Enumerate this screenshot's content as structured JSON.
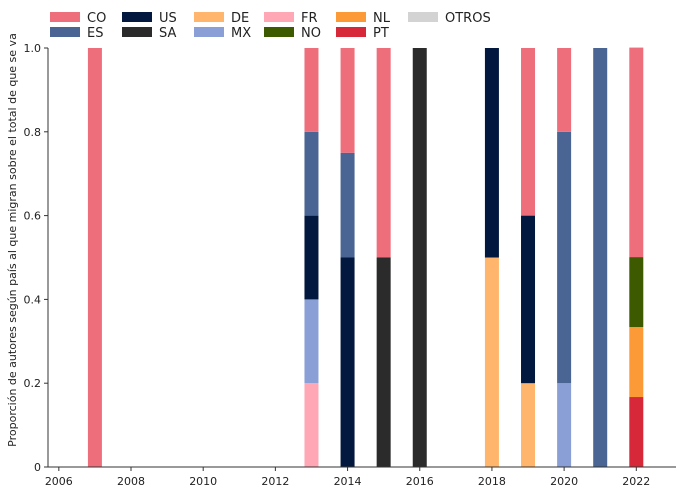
{
  "chart_data": {
    "type": "bar",
    "stacked": true,
    "title": "",
    "xlabel": "",
    "ylabel": "Proporción de autores según país al que migran sobre el total de que se va",
    "xlim": [
      2005.7,
      2023.1
    ],
    "ylim": [
      0,
      1.0
    ],
    "xticks": [
      "2006",
      "2008",
      "2010",
      "2012",
      "2014",
      "2016",
      "2018",
      "2020",
      "2022"
    ],
    "yticks": [
      "0",
      "0.2",
      "0.4",
      "0.6",
      "0.8",
      "1.0"
    ],
    "legend_placement": "top-left",
    "grid": false,
    "categories": [
      2006,
      2007,
      2008,
      2009,
      2010,
      2011,
      2012,
      2013,
      2014,
      2015,
      2016,
      2017,
      2018,
      2019,
      2020,
      2021,
      2022
    ],
    "series": [
      {
        "name": "PT",
        "color": "#d62839",
        "values": [
          0,
          0,
          0,
          0,
          0,
          0,
          0,
          0,
          0,
          0,
          0,
          0,
          0,
          0,
          0,
          0,
          0.167
        ]
      },
      {
        "name": "NL",
        "color": "#fb9a36",
        "values": [
          0,
          0,
          0,
          0,
          0,
          0,
          0,
          0,
          0,
          0,
          0,
          0,
          0,
          0,
          0,
          0,
          0.167
        ]
      },
      {
        "name": "NO",
        "color": "#3d5a00",
        "values": [
          0,
          0,
          0,
          0,
          0,
          0,
          0,
          0,
          0,
          0,
          0,
          0,
          0,
          0,
          0,
          0,
          0.167
        ]
      },
      {
        "name": "FR",
        "color": "#ffa7b5",
        "values": [
          0,
          0,
          0,
          0,
          0,
          0,
          0,
          0.2,
          0,
          0,
          0,
          0,
          0,
          0,
          0,
          0,
          0
        ]
      },
      {
        "name": "MX",
        "color": "#8a9fd6",
        "values": [
          0,
          0,
          0,
          0,
          0,
          0,
          0,
          0.2,
          0,
          0,
          0,
          0,
          0,
          0,
          0.2,
          0,
          0
        ]
      },
      {
        "name": "DE",
        "color": "#ffb56b",
        "values": [
          0,
          0,
          0,
          0,
          0,
          0,
          0,
          0,
          0,
          0,
          0,
          0,
          0.5,
          0.2,
          0,
          0,
          0
        ]
      },
      {
        "name": "US",
        "color": "#03183f",
        "values": [
          0,
          0,
          0,
          0,
          0,
          0,
          0,
          0.2,
          0.5,
          0,
          0,
          0,
          0.5,
          0.4,
          0,
          0,
          0
        ]
      },
      {
        "name": "SA",
        "color": "#2b2b2b",
        "values": [
          0,
          0,
          0,
          0,
          0,
          0,
          0,
          0,
          0,
          0.5,
          1.0,
          0,
          0,
          0,
          0,
          0,
          0
        ]
      },
      {
        "name": "ES",
        "color": "#4a6593",
        "values": [
          0,
          0,
          0,
          0,
          0,
          0,
          0,
          0.2,
          0.25,
          0,
          0,
          0,
          0,
          0,
          0.6,
          1.0,
          0
        ]
      },
      {
        "name": "CO",
        "color": "#ee6e7c",
        "values": [
          0,
          1.0,
          0,
          0,
          0,
          0,
          0,
          0.2,
          0.25,
          0.5,
          0,
          0,
          0,
          0.4,
          0.2,
          0,
          0.5
        ]
      },
      {
        "name": "OTROS",
        "color": "#d3d3d3",
        "values": [
          0,
          0,
          0,
          0,
          0,
          0,
          0,
          0,
          0,
          0,
          0,
          0,
          0,
          0,
          0,
          0,
          0
        ]
      }
    ],
    "legend": [
      {
        "name": "CO",
        "color": "#ee6e7c"
      },
      {
        "name": "ES",
        "color": "#4a6593"
      },
      {
        "name": "US",
        "color": "#03183f"
      },
      {
        "name": "SA",
        "color": "#2b2b2b"
      },
      {
        "name": "DE",
        "color": "#ffb56b"
      },
      {
        "name": "MX",
        "color": "#8a9fd6"
      },
      {
        "name": "FR",
        "color": "#ffa7b5"
      },
      {
        "name": "NO",
        "color": "#3d5a00"
      },
      {
        "name": "NL",
        "color": "#fb9a36"
      },
      {
        "name": "PT",
        "color": "#d62839"
      },
      {
        "name": "OTROS",
        "color": "#d3d3d3"
      }
    ]
  }
}
